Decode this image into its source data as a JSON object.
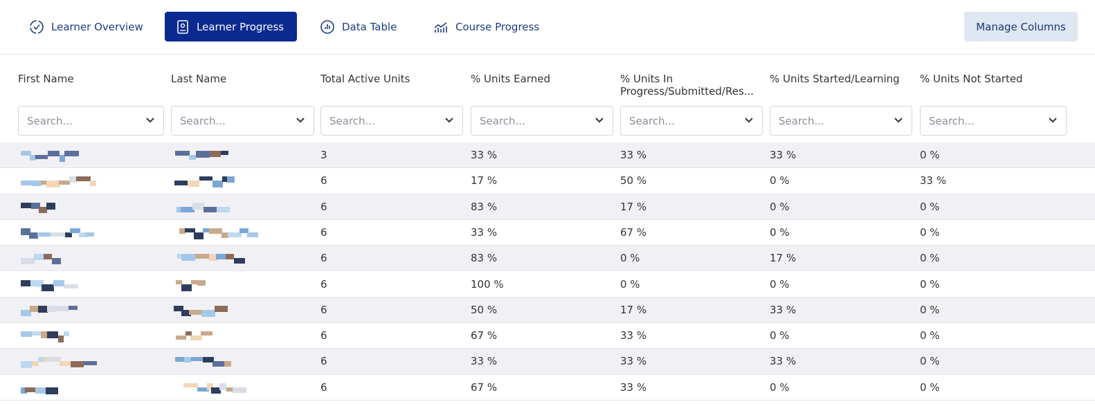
{
  "tabs": [
    {
      "label": "Learner Overview",
      "active": false
    },
    {
      "label": "Learner Progress",
      "active": true
    },
    {
      "label": "Data Table",
      "active": false
    },
    {
      "label": "Course Progress",
      "active": false
    }
  ],
  "manage_button": "Manage Columns",
  "table": {
    "headers": [
      "First Name",
      "Last Name",
      "Total Active Units",
      "% Units Earned",
      "% Units In Progress/Submitted/Res...",
      "% Units Started/Learning",
      "% Units Not Started"
    ],
    "filters": [
      "Search...",
      "Search...",
      "Search...",
      "Search...",
      "Search...",
      "Search...",
      "Search..."
    ],
    "rows": [
      [
        3,
        "33 %",
        "33 %",
        "33 %",
        "0 %"
      ],
      [
        6,
        "17 %",
        "50 %",
        "0 %",
        "33 %"
      ],
      [
        6,
        "83 %",
        "17 %",
        "0 %",
        "0 %"
      ],
      [
        6,
        "33 %",
        "67 %",
        "0 %",
        "0 %"
      ],
      [
        6,
        "83 %",
        "0 %",
        "17 %",
        "0 %"
      ],
      [
        6,
        "100 %",
        "0 %",
        "0 %",
        "0 %"
      ],
      [
        6,
        "50 %",
        "17 %",
        "33 %",
        "0 %"
      ],
      [
        6,
        "67 %",
        "33 %",
        "0 %",
        "0 %"
      ],
      [
        6,
        "33 %",
        "33 %",
        "33 %",
        "0 %"
      ],
      [
        6,
        "67 %",
        "33 %",
        "0 %",
        "0 %"
      ]
    ]
  }
}
